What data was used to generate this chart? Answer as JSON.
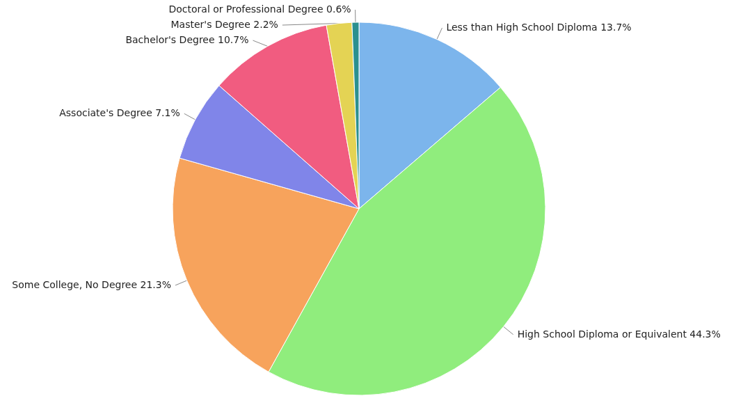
{
  "chart_data": {
    "type": "pie",
    "categories": [
      "Less than High School Diploma",
      "High School Diploma or Equivalent",
      "Some College, No Degree",
      "Associate's Degree",
      "Bachelor's Degree",
      "Master's Degree",
      "Doctoral or Professional Degree"
    ],
    "values": [
      13.7,
      44.3,
      21.3,
      7.1,
      10.7,
      2.2,
      0.6
    ],
    "value_labels": [
      "13.7%",
      "44.3%",
      "21.3%",
      "7.1%",
      "10.7%",
      "2.2%",
      "0.6%"
    ],
    "colors": [
      "#7cb5ec",
      "#90ed7d",
      "#f7a35c",
      "#8085e9",
      "#f15c80",
      "#e4d354",
      "#2b908f"
    ]
  }
}
